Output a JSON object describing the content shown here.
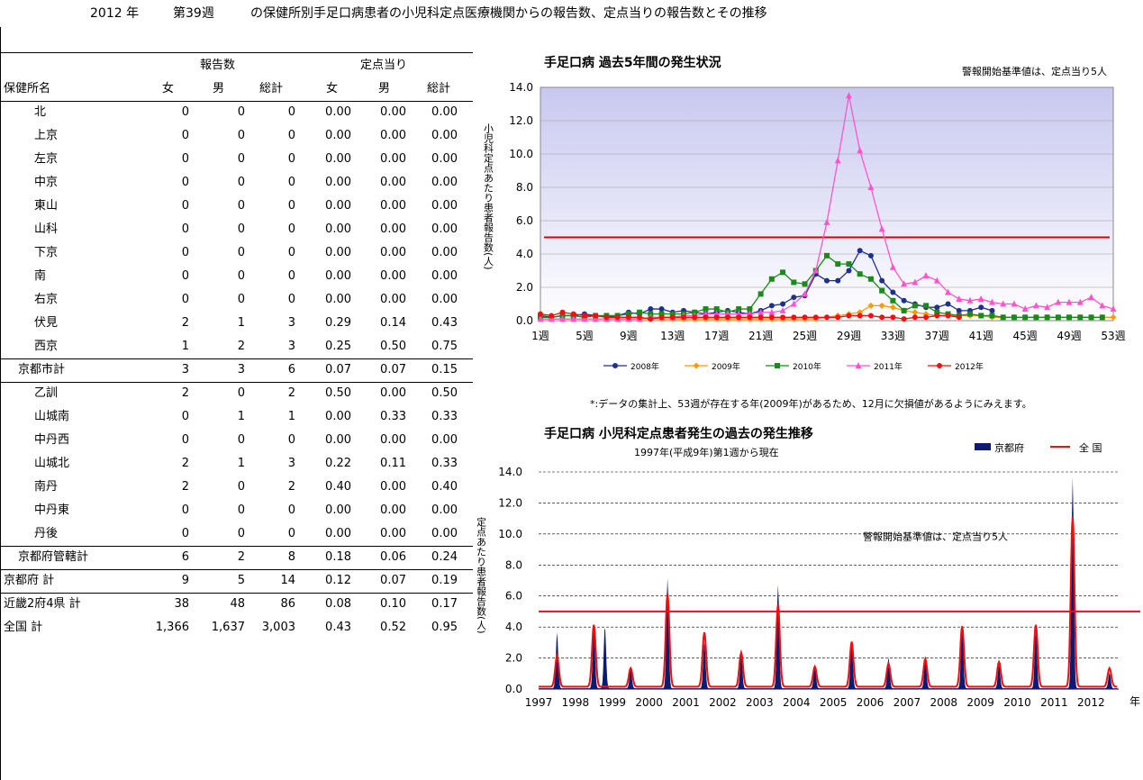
{
  "header": {
    "year": "2012 年",
    "week": "第39週",
    "title": "の保健所別手足口病患者の小児科定点医療機関からの報告数、定点当りの報告数とその推移"
  },
  "table": {
    "group1": "報告数",
    "group2": "定点当り",
    "col_name": "保健所名",
    "cols": [
      "女",
      "男",
      "総計",
      "女",
      "男",
      "総計"
    ],
    "rows": [
      {
        "name": "北",
        "v": [
          "0",
          "0",
          "0",
          "0.00",
          "0.00",
          "0.00"
        ]
      },
      {
        "name": "上京",
        "v": [
          "0",
          "0",
          "0",
          "0.00",
          "0.00",
          "0.00"
        ]
      },
      {
        "name": "左京",
        "v": [
          "0",
          "0",
          "0",
          "0.00",
          "0.00",
          "0.00"
        ]
      },
      {
        "name": "中京",
        "v": [
          "0",
          "0",
          "0",
          "0.00",
          "0.00",
          "0.00"
        ]
      },
      {
        "name": "東山",
        "v": [
          "0",
          "0",
          "0",
          "0.00",
          "0.00",
          "0.00"
        ]
      },
      {
        "name": "山科",
        "v": [
          "0",
          "0",
          "0",
          "0.00",
          "0.00",
          "0.00"
        ]
      },
      {
        "name": "下京",
        "v": [
          "0",
          "0",
          "0",
          "0.00",
          "0.00",
          "0.00"
        ]
      },
      {
        "name": "南",
        "v": [
          "0",
          "0",
          "0",
          "0.00",
          "0.00",
          "0.00"
        ]
      },
      {
        "name": "右京",
        "v": [
          "0",
          "0",
          "0",
          "0.00",
          "0.00",
          "0.00"
        ]
      },
      {
        "name": "伏見",
        "v": [
          "2",
          "1",
          "3",
          "0.29",
          "0.14",
          "0.43"
        ]
      },
      {
        "name": "西京",
        "v": [
          "1",
          "2",
          "3",
          "0.25",
          "0.50",
          "0.75"
        ]
      },
      {
        "name": "京都市計",
        "v": [
          "3",
          "3",
          "6",
          "0.07",
          "0.07",
          "0.15"
        ]
      },
      {
        "name": "乙訓",
        "v": [
          "2",
          "0",
          "2",
          "0.50",
          "0.00",
          "0.50"
        ]
      },
      {
        "name": "山城南",
        "v": [
          "0",
          "1",
          "1",
          "0.00",
          "0.33",
          "0.33"
        ]
      },
      {
        "name": "中丹西",
        "v": [
          "0",
          "0",
          "0",
          "0.00",
          "0.00",
          "0.00"
        ]
      },
      {
        "name": "山城北",
        "v": [
          "2",
          "1",
          "3",
          "0.22",
          "0.11",
          "0.33"
        ]
      },
      {
        "name": "南丹",
        "v": [
          "2",
          "0",
          "2",
          "0.40",
          "0.00",
          "0.40"
        ]
      },
      {
        "name": "中丹東",
        "v": [
          "0",
          "0",
          "0",
          "0.00",
          "0.00",
          "0.00"
        ]
      },
      {
        "name": "丹後",
        "v": [
          "0",
          "0",
          "0",
          "0.00",
          "0.00",
          "0.00"
        ]
      },
      {
        "name": "京都府管轄計",
        "v": [
          "6",
          "2",
          "8",
          "0.18",
          "0.06",
          "0.24"
        ]
      },
      {
        "name": "京都府 計",
        "v": [
          "9",
          "5",
          "14",
          "0.12",
          "0.07",
          "0.19"
        ]
      },
      {
        "name": "近畿2府4県 計",
        "v": [
          "38",
          "48",
          "86",
          "0.08",
          "0.10",
          "0.17"
        ]
      },
      {
        "name": "全国 計",
        "v": [
          "1,366",
          "1,637",
          "3,003",
          "0.43",
          "0.52",
          "0.95"
        ]
      }
    ]
  },
  "chart_data": [
    {
      "type": "line",
      "title": "手足口病 過去5年間の発生状況",
      "subtitle": "警報開始基準値は、定点当り5人",
      "ylabel": "小児科定点あたり患者報告数(人)",
      "ylim": [
        0,
        14
      ],
      "yticks": [
        "0.0",
        "2.0",
        "4.0",
        "6.0",
        "8.0",
        "10.0",
        "12.0",
        "14.0"
      ],
      "xticks": [
        "1週",
        "5週",
        "9週",
        "13週",
        "17週",
        "21週",
        "25週",
        "29週",
        "33週",
        "37週",
        "41週",
        "45週",
        "49週",
        "53週"
      ],
      "threshold": 5,
      "note": "*:データの集計上、53週が存在する年(2009年)があるため、12月に欠損値があるようにみえます。",
      "series": [
        {
          "name": "2008年",
          "color": "#1f2f8f",
          "marker": "circle",
          "values": [
            0.3,
            0.2,
            0.3,
            0.3,
            0.4,
            0.3,
            0.2,
            0.3,
            0.5,
            0.4,
            0.7,
            0.7,
            0.5,
            0.6,
            0.5,
            0.4,
            0.5,
            0.6,
            0.5,
            0.4,
            0.6,
            0.9,
            1.0,
            1.4,
            1.5,
            2.8,
            2.4,
            2.4,
            3.0,
            4.2,
            3.9,
            2.4,
            1.7,
            1.2,
            1.0,
            0.8,
            0.8,
            1.0,
            0.6,
            0.6,
            0.8,
            0.6
          ]
        },
        {
          "name": "2009年",
          "color": "#ff9900",
          "marker": "diamond",
          "values": [
            0.1,
            0.1,
            0.1,
            0.1,
            0.1,
            0.1,
            0.1,
            0.1,
            0.1,
            0.1,
            0.1,
            0.1,
            0.1,
            0.1,
            0.1,
            0.1,
            0.1,
            0.1,
            0.1,
            0.1,
            0.1,
            0.1,
            0.1,
            0.1,
            0.1,
            0.1,
            0.2,
            0.3,
            0.4,
            0.5,
            0.9,
            0.9,
            0.8,
            0.6,
            0.5,
            0.4,
            0.3,
            0.3,
            0.3,
            0.3,
            0.3,
            0.2,
            0.2,
            0.2,
            0.2,
            0.2,
            0.2,
            0.2,
            0.2,
            0.2,
            0.2,
            0.2,
            0.2
          ]
        },
        {
          "name": "2010年",
          "color": "#1a8a1a",
          "marker": "square",
          "values": [
            0.2,
            0.2,
            0.3,
            0.3,
            0.2,
            0.3,
            0.3,
            0.3,
            0.4,
            0.5,
            0.4,
            0.4,
            0.4,
            0.4,
            0.5,
            0.7,
            0.7,
            0.5,
            0.7,
            0.7,
            1.6,
            2.5,
            2.9,
            2.3,
            2.2,
            3.0,
            3.9,
            3.4,
            3.4,
            2.8,
            2.5,
            1.8,
            1.2,
            0.6,
            0.9,
            0.9,
            0.5,
            0.4,
            0.3,
            0.4,
            0.3,
            0.3,
            0.2,
            0.2,
            0.2,
            0.2,
            0.2,
            0.2,
            0.2,
            0.2,
            0.2,
            0.2
          ]
        },
        {
          "name": "2011年",
          "color": "#ff55cc",
          "marker": "triangle",
          "values": [
            0.1,
            0.1,
            0.1,
            0.1,
            0.1,
            0.1,
            0.1,
            0.1,
            0.1,
            0.1,
            0.2,
            0.2,
            0.2,
            0.3,
            0.3,
            0.4,
            0.4,
            0.4,
            0.4,
            0.4,
            0.5,
            0.5,
            0.6,
            1.0,
            1.6,
            3.0,
            5.9,
            9.6,
            13.5,
            10.2,
            8.0,
            5.5,
            3.2,
            2.2,
            2.3,
            2.7,
            2.4,
            1.7,
            1.3,
            1.2,
            1.3,
            1.1,
            1.0,
            1.0,
            0.7,
            0.9,
            0.8,
            1.1,
            1.1,
            1.1,
            1.4,
            0.9,
            0.7
          ]
        },
        {
          "name": "2012年",
          "color": "#ee1111",
          "marker": "circle",
          "values": [
            0.4,
            0.3,
            0.5,
            0.4,
            0.3,
            0.3,
            0.2,
            0.2,
            0.2,
            0.2,
            0.1,
            0.2,
            0.2,
            0.2,
            0.2,
            0.2,
            0.2,
            0.2,
            0.2,
            0.2,
            0.2,
            0.2,
            0.2,
            0.2,
            0.2,
            0.2,
            0.2,
            0.2,
            0.3,
            0.3,
            0.3,
            0.2,
            0.2,
            0.1,
            0.2,
            0.2,
            0.3,
            0.3,
            0.2
          ]
        }
      ]
    },
    {
      "type": "area",
      "title": "手足口病 小児科定点患者発生の過去の発生推移",
      "subtitle": "1997年(平成9年)第1週から現在",
      "ylabel": "定点あたり患者報告数(人)",
      "xlabel": "年",
      "annotation": "警報開始基準値は、定点当り5人",
      "ylim": [
        0,
        14
      ],
      "yticks": [
        "0.0",
        "2.0",
        "4.0",
        "6.0",
        "8.0",
        "10.0",
        "12.0",
        "14.0"
      ],
      "xticks": [
        "1997",
        "1998",
        "1999",
        "2000",
        "2001",
        "2002",
        "2003",
        "2004",
        "2005",
        "2006",
        "2007",
        "2008",
        "2009",
        "2010",
        "2011",
        "2012"
      ],
      "threshold": 5,
      "series": [
        {
          "name": "京都府",
          "color": "#0d1a6e",
          "peaks": [
            [
              1997.5,
              3.6
            ],
            [
              1998.5,
              3.8
            ],
            [
              1998.8,
              4.0
            ],
            [
              1999.5,
              1.2
            ],
            [
              2000.5,
              7.1
            ],
            [
              2001.5,
              3.0
            ],
            [
              2002.5,
              2.1
            ],
            [
              2003.5,
              6.7
            ],
            [
              2004.5,
              1.5
            ],
            [
              2005.5,
              3.1
            ],
            [
              2006.5,
              2.0
            ],
            [
              2007.5,
              1.9
            ],
            [
              2008.5,
              4.1
            ],
            [
              2009.5,
              1.5
            ],
            [
              2010.5,
              3.7
            ],
            [
              2011.5,
              13.6
            ],
            [
              2012.5,
              1.0
            ]
          ]
        },
        {
          "name": "全 国",
          "color": "#ee1111",
          "peaks": [
            [
              1997.5,
              2.0
            ],
            [
              1998.5,
              4.0
            ],
            [
              1999.5,
              1.2
            ],
            [
              2000.5,
              6.0
            ],
            [
              2001.5,
              3.5
            ],
            [
              2002.5,
              2.2
            ],
            [
              2003.5,
              5.3
            ],
            [
              2004.5,
              1.3
            ],
            [
              2005.5,
              2.9
            ],
            [
              2006.5,
              1.5
            ],
            [
              2007.5,
              1.8
            ],
            [
              2008.5,
              3.9
            ],
            [
              2009.5,
              1.6
            ],
            [
              2010.5,
              4.0
            ],
            [
              2011.5,
              11.0
            ],
            [
              2012.5,
              1.2
            ]
          ]
        }
      ]
    }
  ]
}
